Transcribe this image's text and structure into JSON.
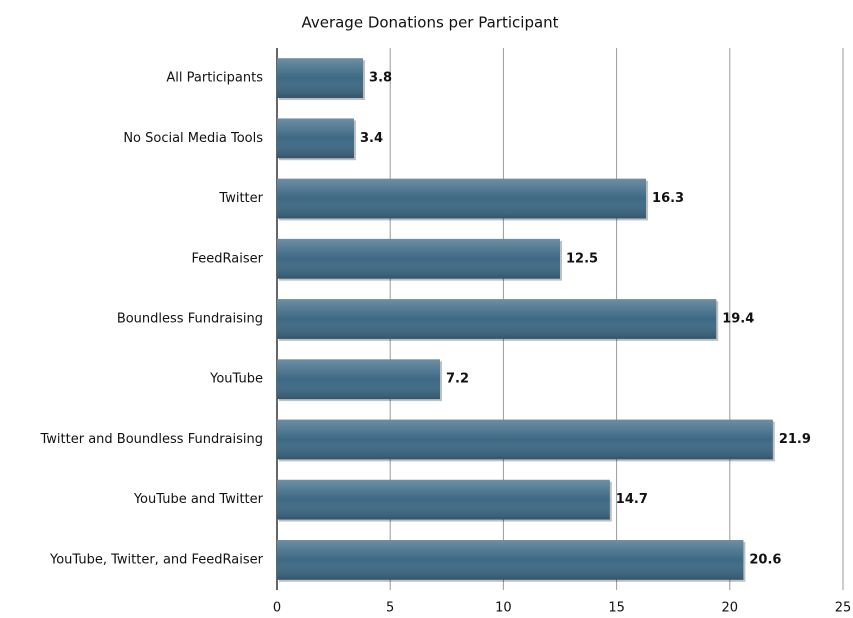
{
  "chart_data": {
    "type": "bar",
    "orientation": "horizontal",
    "title": "Average Donations per Participant",
    "categories": [
      "All Participants",
      "No Social Media Tools",
      "Twitter",
      "FeedRaiser",
      "Boundless Fundraising",
      "YouTube",
      "Twitter and Boundless Fundraising",
      "YouTube and Twitter",
      "YouTube, Twitter, and FeedRaiser"
    ],
    "values": [
      3.8,
      3.4,
      16.3,
      12.5,
      19.4,
      7.2,
      21.9,
      14.7,
      20.6
    ],
    "color": "#3d6985",
    "xlim": [
      0,
      25
    ],
    "xticks": [
      0,
      5,
      10,
      15,
      20,
      25
    ],
    "grid": true
  }
}
